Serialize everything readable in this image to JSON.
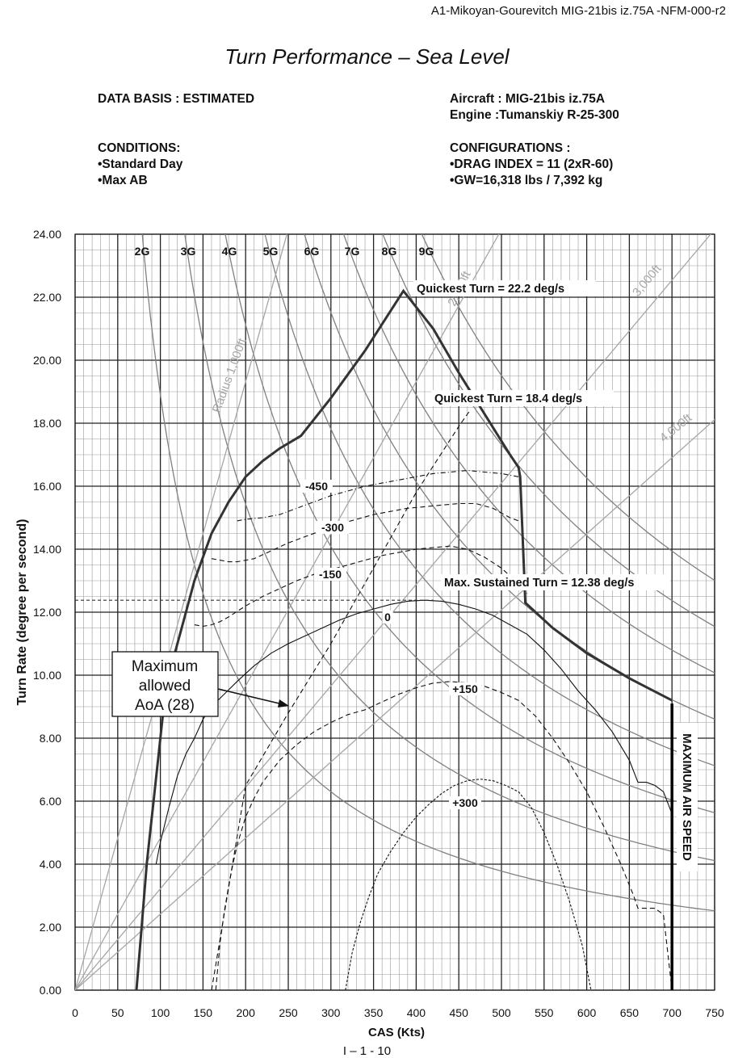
{
  "header": "A1-Mikoyan-Gourevitch MIG-21bis iz.75A -NFM-000-r2",
  "footer": "I – 1 - 10",
  "info": {
    "data_basis": "DATA BASIS : ESTIMATED",
    "conditions_title": "CONDITIONS:",
    "conditions": [
      "•Standard Day",
      "•Max AB"
    ],
    "aircraft": "Aircraft :  MIG-21bis iz.75A",
    "engine": "Engine :Tumanskiy R-25-300",
    "configurations_title": "CONFIGURATIONS :",
    "configurations": [
      "•DRAG INDEX = 11 (2xR-60)",
      "•GW=16,318 lbs / 7,392 kg"
    ]
  },
  "chart_data": {
    "type": "line",
    "title": "Turn Performance – Sea Level",
    "xlabel": "CAS (Kts)",
    "ylabel": "Turn Rate  (degree  per second)",
    "xlim": [
      0,
      750
    ],
    "ylim": [
      0,
      24
    ],
    "xticks": [
      "0",
      "50",
      "100",
      "150",
      "200",
      "250",
      "300",
      "350",
      "400",
      "450",
      "500",
      "550",
      "600",
      "650",
      "700",
      "750"
    ],
    "yticks": [
      "0.00",
      "2.00",
      "4.00",
      "6.00",
      "8.00",
      "10.00",
      "12.00",
      "14.00",
      "16.00",
      "18.00",
      "20.00",
      "22.00",
      "24.00"
    ],
    "grid": true,
    "g_lines": [
      2,
      3,
      4,
      5,
      6,
      7,
      8,
      9
    ],
    "g_labels": [
      "2G",
      "3G",
      "4G",
      "5G",
      "6G",
      "7G",
      "8G",
      "9G"
    ],
    "radius_lines": [
      1000,
      2000,
      3000,
      4000
    ],
    "radius_labels": [
      "Radius 1,000ft",
      "2,000ft",
      "3,000ft",
      "4,000ft"
    ],
    "envelope": {
      "name": "max instantaneous",
      "x": [
        72,
        78,
        84,
        88,
        92,
        98,
        104,
        110,
        120,
        130,
        140,
        160,
        180,
        200,
        220,
        240,
        265,
        300,
        340,
        385,
        420,
        450,
        480,
        510,
        520,
        522,
        528,
        560,
        600,
        650,
        700
      ],
      "y": [
        0,
        2,
        4,
        5,
        6,
        7.5,
        9,
        10,
        11,
        12,
        13,
        14.5,
        15.5,
        16.3,
        16.8,
        17.2,
        17.6,
        18.8,
        20.3,
        22.2,
        21,
        19.6,
        18.3,
        17,
        16.6,
        16.3,
        12.3,
        11.5,
        10.7,
        9.9,
        9.2
      ]
    },
    "series": [
      {
        "name": "-450",
        "x": [
          190,
          200,
          220,
          240,
          260,
          280,
          300,
          320,
          340,
          360,
          380,
          400,
          420,
          440,
          460,
          480,
          500,
          520
        ],
        "y": [
          14.9,
          14.95,
          15.0,
          15.1,
          15.3,
          15.5,
          15.7,
          15.85,
          16.0,
          16.1,
          16.2,
          16.3,
          16.4,
          16.45,
          16.5,
          16.45,
          16.4,
          16.3
        ]
      },
      {
        "name": "-300",
        "x": [
          160,
          170,
          180,
          190,
          210,
          230,
          250,
          270,
          290,
          310,
          330,
          350,
          370,
          390,
          410,
          430,
          450,
          470,
          490,
          510,
          520
        ],
        "y": [
          13.7,
          13.65,
          13.6,
          13.6,
          13.7,
          13.95,
          14.2,
          14.4,
          14.6,
          14.8,
          14.95,
          15.1,
          15.2,
          15.3,
          15.35,
          15.4,
          15.45,
          15.45,
          15.3,
          15.0,
          14.9
        ]
      },
      {
        "name": "-150",
        "x": [
          140,
          150,
          160,
          170,
          180,
          200,
          220,
          240,
          260,
          280,
          300,
          320,
          340,
          360,
          380,
          400,
          420,
          440,
          460,
          480,
          500,
          520,
          530
        ],
        "y": [
          11.6,
          11.55,
          11.6,
          11.7,
          11.85,
          12.2,
          12.5,
          12.75,
          13.0,
          13.2,
          13.35,
          13.5,
          13.65,
          13.8,
          13.9,
          14.0,
          14.05,
          14.1,
          14.0,
          13.75,
          13.4,
          12.9,
          12.6
        ]
      },
      {
        "name": "0",
        "x": [
          95,
          100,
          110,
          120,
          130,
          140,
          150,
          160,
          175,
          190,
          210,
          230,
          250,
          270,
          290,
          310,
          330,
          350,
          370,
          390,
          410,
          430,
          450,
          470,
          490,
          510,
          530,
          550,
          570,
          590,
          610,
          630,
          650,
          660,
          670,
          680,
          690,
          700
        ],
        "y": [
          4,
          4.7,
          5.8,
          6.8,
          7.5,
          8.0,
          8.6,
          9.0,
          9.4,
          9.8,
          10.3,
          10.7,
          11.0,
          11.25,
          11.5,
          11.75,
          11.95,
          12.1,
          12.25,
          12.35,
          12.38,
          12.35,
          12.25,
          12.1,
          11.9,
          11.6,
          11.3,
          10.8,
          10.2,
          9.5,
          8.9,
          8.2,
          7.3,
          6.6,
          6.6,
          6.5,
          6.3,
          5.6
        ]
      },
      {
        "name": "+150",
        "x": [
          165,
          170,
          175,
          180,
          185,
          190,
          200,
          210,
          220,
          240,
          260,
          280,
          300,
          320,
          340,
          360,
          380,
          400,
          420,
          440,
          460,
          480,
          500,
          520,
          540,
          560,
          580,
          600,
          620,
          640,
          655,
          660,
          680,
          690,
          700
        ],
        "y": [
          0,
          1.5,
          2.5,
          3.3,
          4.0,
          4.6,
          5.5,
          6.1,
          6.6,
          7.3,
          7.8,
          8.2,
          8.5,
          8.75,
          8.9,
          9.15,
          9.4,
          9.6,
          9.75,
          9.8,
          9.75,
          9.65,
          9.45,
          9.2,
          8.7,
          8.0,
          7.2,
          6.3,
          5.2,
          4.0,
          3.0,
          2.6,
          2.6,
          2.4,
          0
        ]
      },
      {
        "name": "+300",
        "x": [
          317,
          325,
          335,
          345,
          355,
          370,
          385,
          400,
          415,
          430,
          445,
          460,
          475,
          490,
          505,
          520,
          535,
          550,
          565,
          580,
          595,
          605
        ],
        "y": [
          0,
          1.2,
          2.2,
          3.0,
          3.7,
          4.4,
          5.0,
          5.5,
          5.9,
          6.25,
          6.5,
          6.65,
          6.7,
          6.65,
          6.5,
          6.3,
          5.8,
          5.0,
          4.0,
          2.8,
          1.4,
          0
        ]
      }
    ],
    "aoa_line": {
      "name": "Maximum allowed AoA (28)",
      "x": [
        160,
        200,
        250,
        300,
        350,
        400,
        450,
        463
      ],
      "y": [
        0,
        6.5,
        8.8,
        11.0,
        13.4,
        15.8,
        17.9,
        18.4
      ]
    },
    "max_air_speed": {
      "label": "MAXIMUM AIR SPEED",
      "x": 700,
      "y": [
        0,
        9.1
      ]
    },
    "sustained_level": 12.38,
    "annotations": [
      {
        "text": "Quickest Turn = 22.2 deg/s",
        "x": 385,
        "y": 22.2
      },
      {
        "text": "Quickest Turn = 18.4 deg/s",
        "x": 463,
        "y": 18.4
      },
      {
        "text": "Max. Sustained Turn = 12.38 deg/s",
        "x": 415,
        "y": 12.38
      },
      {
        "text": "Maximum allowed AoA (28)"
      }
    ]
  }
}
